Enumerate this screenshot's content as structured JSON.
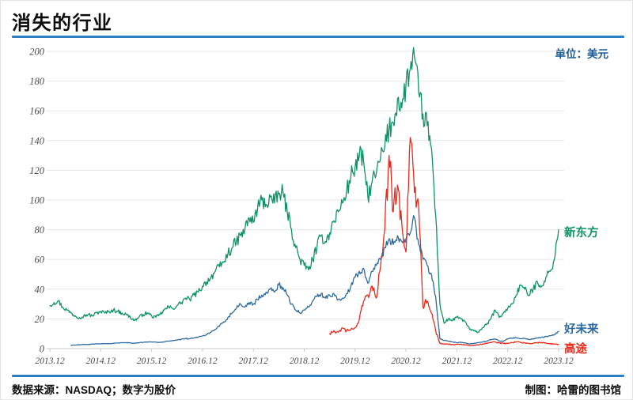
{
  "title": "消失的行业",
  "unit_label": "单位：美元",
  "footer": {
    "source": "数据来源：NASDAQ；数字为股价",
    "credit": "制图：哈雷的图书馆"
  },
  "colors": {
    "accent_rule": "#2a80c3",
    "unit_text": "#1b5a96",
    "grid": "#e7e7e7",
    "axis": "#c9c9c9",
    "tick_text": "#4a4a4a",
    "xindongfang_green": "#0e9269",
    "haoweilai_blue": "#2d6a9f",
    "gaotu_red": "#e8291c"
  },
  "chart_data": {
    "type": "line",
    "title": "消失的行业",
    "unit": "美元",
    "ylabel": "",
    "xlabel": "",
    "ylim": [
      0,
      200
    ],
    "y_ticks": [
      0,
      20,
      40,
      60,
      80,
      100,
      120,
      140,
      160,
      180,
      200
    ],
    "x_tick_labels": [
      "2013.12",
      "2014.12",
      "2015.12",
      "2016.12",
      "2017.12",
      "2018.12",
      "2019.12",
      "2020.12",
      "2021.12",
      "2022.12",
      "2023.12"
    ],
    "x_unit": "months since 2013.12, monthly samples of weekly stock price",
    "grid": "horizontal only",
    "legend_position": "right of line ends",
    "series": [
      {
        "name": "新东方",
        "color": "#0e9269",
        "volatility": 0.055,
        "start_month_index": 0,
        "monthly_values": [
          29,
          31,
          32,
          28,
          26,
          24,
          22,
          21,
          22,
          23,
          22,
          24,
          25,
          24,
          25,
          26,
          25,
          24,
          23,
          21,
          19,
          21,
          23,
          24,
          22,
          21,
          23,
          26,
          28,
          27,
          29,
          31,
          34,
          33,
          36,
          38,
          42,
          45,
          48,
          52,
          55,
          58,
          64,
          68,
          72,
          76,
          80,
          88,
          85,
          95,
          100,
          97,
          102,
          98,
          104,
          105,
          92,
          80,
          68,
          60,
          56,
          53,
          60,
          68,
          76,
          72,
          78,
          86,
          92,
          98,
          106,
          116,
          122,
          130,
          126,
          102,
          112,
          118,
          128,
          136,
          148,
          152,
          168,
          162,
          178,
          188,
          196,
          172,
          158,
          150,
          135,
          90,
          30,
          17,
          20,
          19,
          21,
          20,
          18,
          13,
          12,
          11,
          14,
          16,
          20,
          26,
          21,
          24,
          27,
          30,
          36,
          43,
          40,
          36,
          40,
          45,
          42,
          48,
          52,
          60,
          80
        ]
      },
      {
        "name": "好未来",
        "color": "#2d6a9f",
        "volatility": 0.045,
        "start_month_index": 5,
        "monthly_values": [
          2.2,
          2.4,
          2.6,
          2.8,
          2.7,
          3.0,
          3.2,
          3.3,
          3.4,
          3.3,
          3.6,
          3.8,
          3.9,
          4.0,
          3.8,
          3.6,
          3.9,
          4.2,
          4.4,
          4.5,
          4.3,
          4.2,
          4.6,
          5.0,
          5.4,
          5.8,
          6.3,
          6.8,
          6.6,
          7.2,
          7.8,
          8.5,
          9.5,
          11,
          13,
          15,
          18,
          21,
          24,
          27,
          30,
          28,
          31,
          30,
          33,
          36,
          38,
          40,
          38,
          43,
          41,
          36,
          30,
          26,
          24,
          26,
          28,
          32,
          35,
          37,
          34,
          36,
          37,
          33,
          34,
          37,
          42,
          48,
          52,
          54,
          44,
          52,
          56,
          60,
          68,
          74,
          70,
          76,
          72,
          74,
          78,
          88,
          70,
          60,
          56,
          50,
          35,
          6.5,
          5.5,
          5,
          4.5,
          4,
          4.2,
          3.8,
          3.2,
          3.6,
          4,
          4.4,
          5,
          6,
          6.4,
          5.2,
          5,
          6.5,
          7,
          7.4,
          6.6,
          6.8,
          6.2,
          6.6,
          7.2,
          7.6,
          8,
          8.6,
          9.5,
          11.5
        ]
      },
      {
        "name": "高途",
        "color": "#e8291c",
        "volatility": 0.1,
        "start_month_index": 66,
        "monthly_values": [
          10,
          12,
          11,
          14,
          12,
          13,
          14,
          20,
          32,
          36,
          42,
          34,
          55,
          80,
          130,
          92,
          110,
          85,
          65,
          142,
          105,
          95,
          28,
          32,
          24,
          12,
          3.5,
          3.2,
          3.0,
          2.6,
          2.8,
          3.0,
          2.6,
          2.0,
          2.3,
          2.6,
          3.0,
          3.4,
          4.2,
          4.6,
          3.8,
          3.4,
          3.6,
          4.0,
          4.5,
          4.2,
          3.8,
          3.4,
          3.6,
          4.0,
          4.2,
          3.8,
          3.4,
          3.1,
          2.9
        ]
      }
    ]
  }
}
